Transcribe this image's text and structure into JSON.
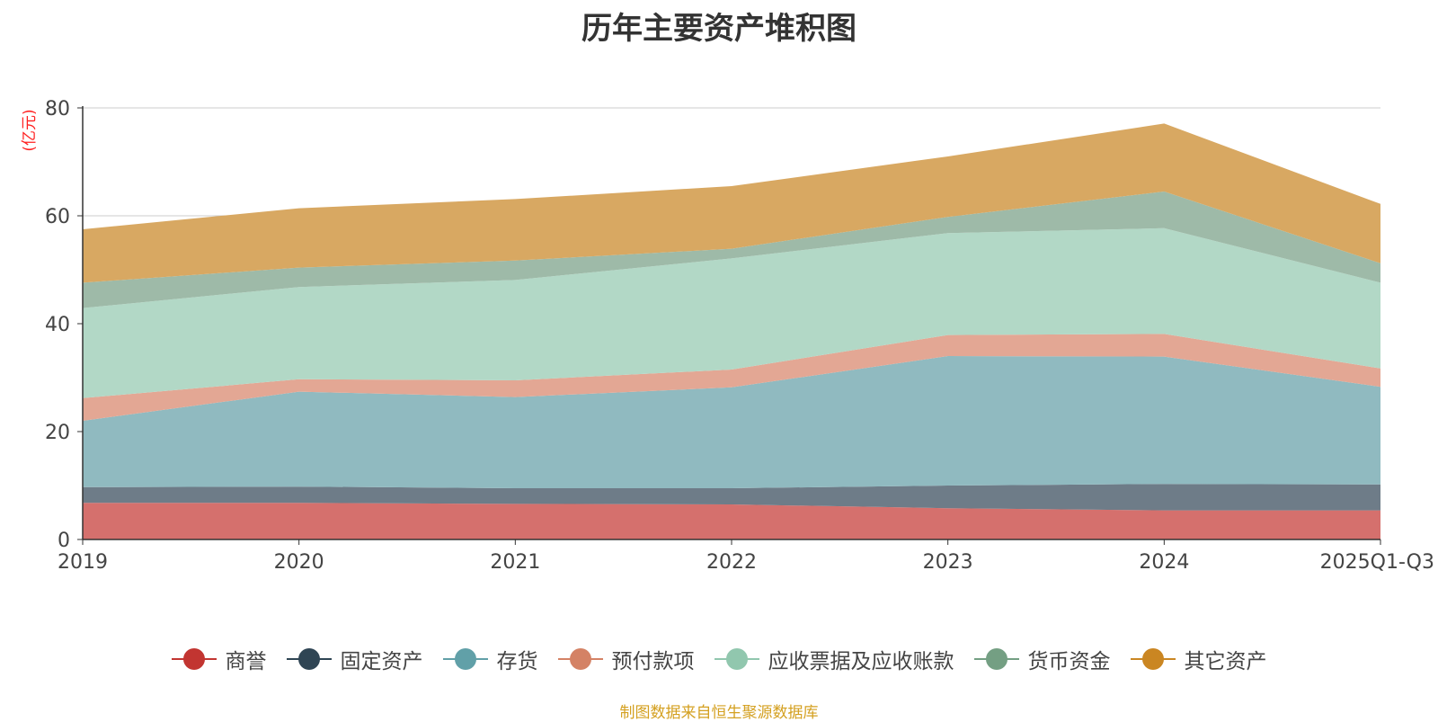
{
  "chart_data": {
    "type": "area",
    "stacked": true,
    "title": "历年主要资产堆积图",
    "unit_label": "(亿元)",
    "categories": [
      "2019",
      "2020",
      "2021",
      "2022",
      "2023",
      "2024",
      "2025Q1-Q3"
    ],
    "ylim": [
      0,
      80
    ],
    "yticks": [
      "0",
      "20",
      "40",
      "60",
      "80"
    ],
    "grid": true,
    "legend_position": "bottom",
    "series": [
      {
        "name": "商誉",
        "color": "#c23531",
        "fill": "#d5706d",
        "values": [
          6.8,
          6.8,
          6.6,
          6.5,
          5.8,
          5.4,
          5.4
        ]
      },
      {
        "name": "固定资产",
        "color": "#2f4554",
        "fill": "#6e7c88",
        "values": [
          2.9,
          3.0,
          2.9,
          3.0,
          4.2,
          4.9,
          4.8
        ]
      },
      {
        "name": "存货",
        "color": "#61a0a8",
        "fill": "#90bac0",
        "values": [
          12.3,
          17.6,
          16.9,
          18.7,
          24.0,
          23.6,
          18.1
        ]
      },
      {
        "name": "预付款项",
        "color": "#d48265",
        "fill": "#e3a794",
        "values": [
          4.2,
          2.3,
          3.1,
          3.3,
          3.9,
          4.2,
          3.4
        ]
      },
      {
        "name": "应收票据及应收账款",
        "color": "#91c7ae",
        "fill": "#b2d8c6",
        "values": [
          16.7,
          17.1,
          18.6,
          20.6,
          18.9,
          19.6,
          15.9
        ]
      },
      {
        "name": "货币资金",
        "color": "#749f83",
        "fill": "#9ebaa8",
        "values": [
          4.7,
          3.6,
          3.6,
          1.8,
          3.0,
          6.8,
          3.6
        ]
      },
      {
        "name": "其它资产",
        "color": "#ca8622",
        "fill": "#d8a862",
        "values": [
          9.9,
          11.0,
          11.4,
          11.6,
          11.2,
          12.6,
          11.0
        ]
      }
    ]
  },
  "source_note": "制图数据来自恒生聚源数据库"
}
